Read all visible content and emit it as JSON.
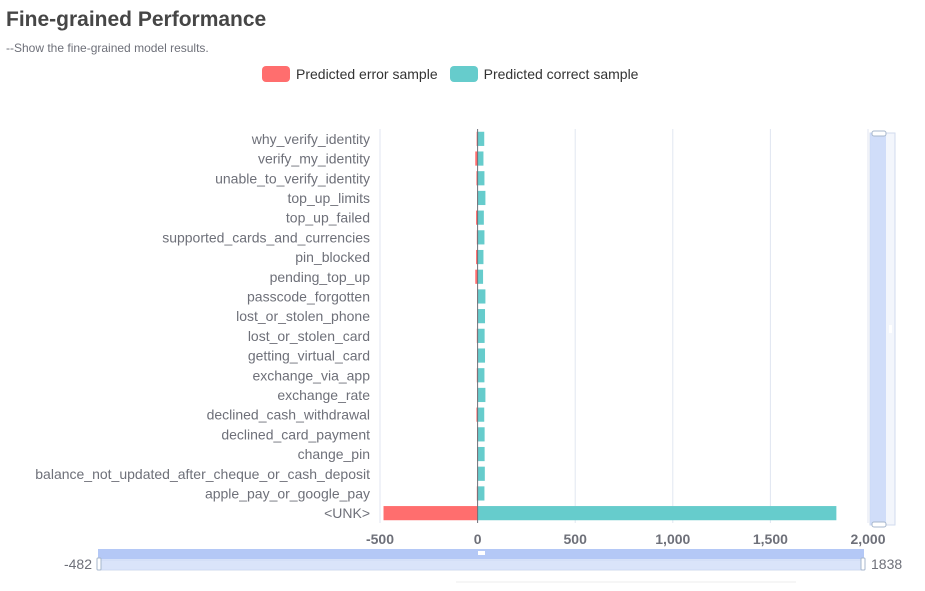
{
  "title": "Fine-grained Performance",
  "subtitle": "--Show the fine-grained model results.",
  "legend": [
    {
      "name": "Predicted error sample",
      "color": "#ff6e6e"
    },
    {
      "name": "Predicted correct sample",
      "color": "#66cccc"
    }
  ],
  "chart_data": {
    "type": "bar",
    "orientation": "horizontal",
    "stacked": true,
    "categories": [
      "why_verify_identity",
      "verify_my_identity",
      "unable_to_verify_identity",
      "top_up_limits",
      "top_up_failed",
      "supported_cards_and_currencies",
      "pin_blocked",
      "pending_top_up",
      "passcode_forgotten",
      "lost_or_stolen_phone",
      "lost_or_stolen_card",
      "getting_virtual_card",
      "exchange_via_app",
      "exchange_rate",
      "declined_cash_withdrawal",
      "declined_card_payment",
      "change_pin",
      "balance_not_updated_after_cheque_or_cash_deposit",
      "apple_pay_or_google_pay",
      "<UNK>"
    ],
    "series": [
      {
        "name": "Predicted error sample",
        "color": "#ff6e6e",
        "values": [
          -5,
          -12,
          -6,
          -2,
          -8,
          -4,
          -8,
          -12,
          -2,
          -2,
          -4,
          -2,
          -4,
          -2,
          -6,
          -3,
          -3,
          -2,
          -4,
          -482
        ]
      },
      {
        "name": "Predicted correct sample",
        "color": "#66cccc",
        "values": [
          34,
          30,
          35,
          40,
          32,
          35,
          30,
          28,
          40,
          38,
          36,
          38,
          35,
          40,
          34,
          36,
          36,
          37,
          35,
          1838
        ]
      }
    ],
    "xlim": [
      -500,
      2000
    ],
    "xticks": [
      -500,
      0,
      500,
      1000,
      1500,
      2000
    ],
    "xtick_labels": [
      "-500",
      "0",
      "500",
      "1,000",
      "1,500",
      "2,000"
    ],
    "grid": true,
    "legend_position": "top-center"
  },
  "datazoom": {
    "x_start_label": "-482",
    "x_end_label": "1838"
  }
}
